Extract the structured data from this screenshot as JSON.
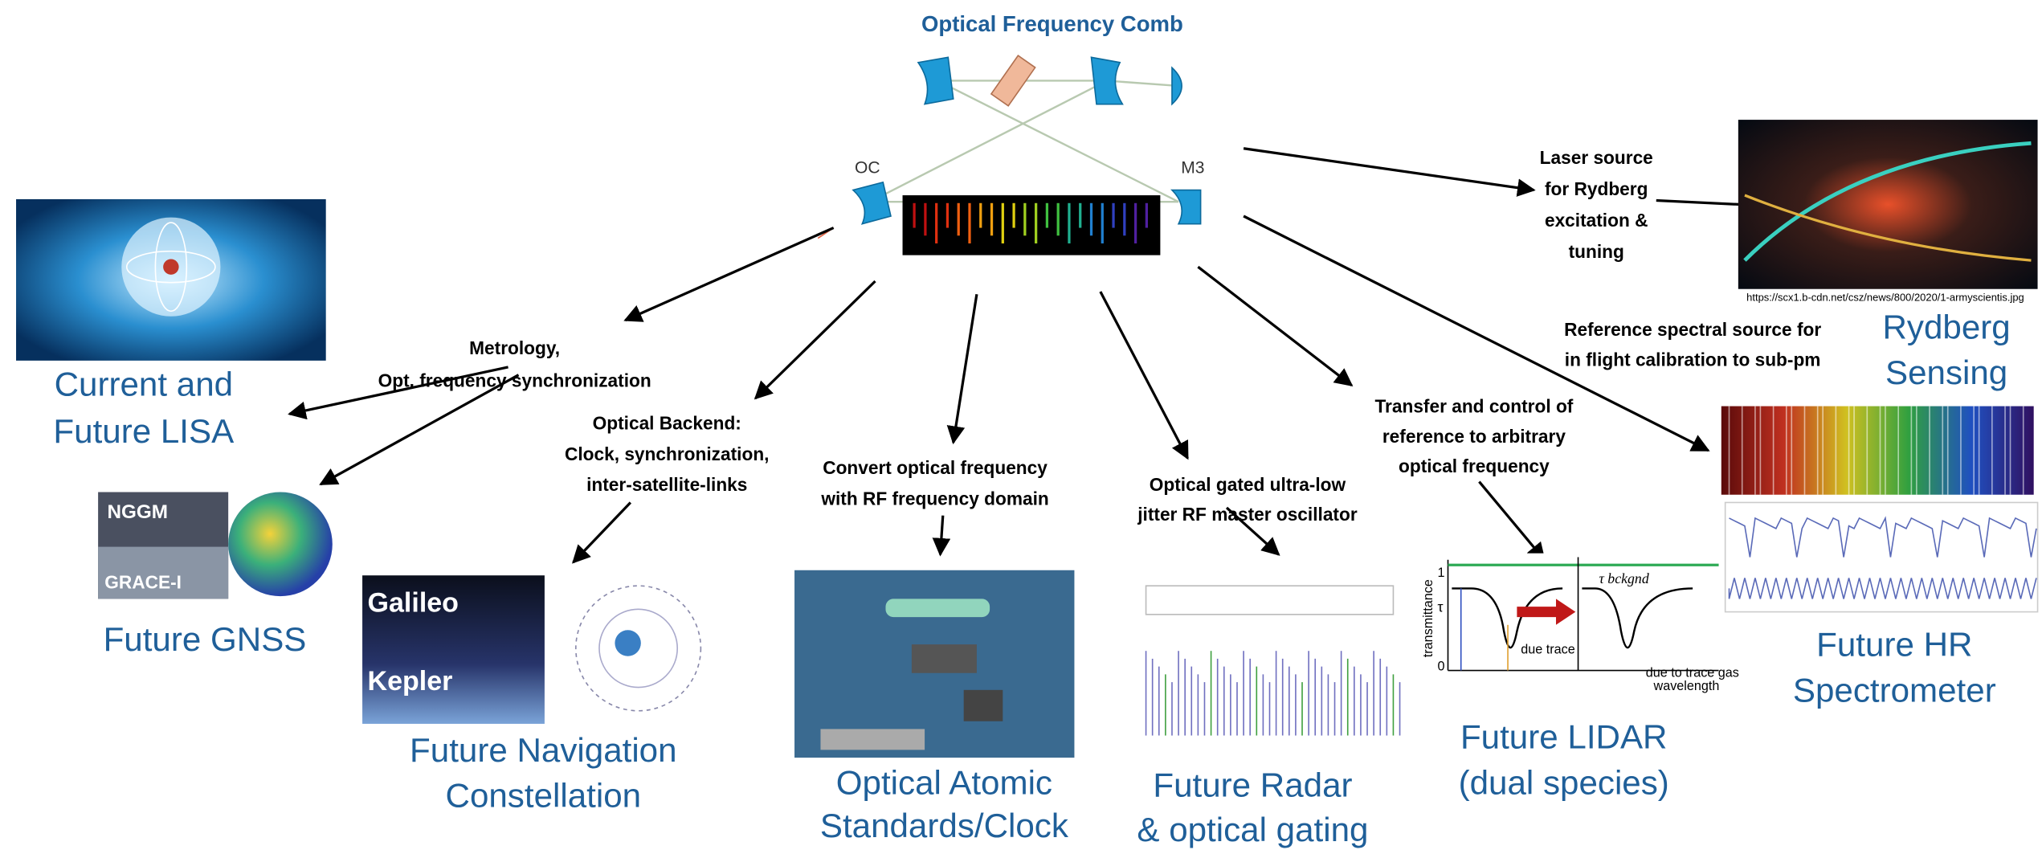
{
  "title": "Optical Frequency Comb",
  "comb_labels": [
    "OC",
    "M3"
  ],
  "links": [
    {
      "lines": [
        "Metrology,",
        "Opt. frequency synchronization"
      ]
    },
    {
      "lines": [
        "Optical Backend:",
        "Clock, synchronization,",
        "inter-satellite-links"
      ]
    },
    {
      "lines": [
        "Convert optical frequency",
        "with RF frequency domain"
      ]
    },
    {
      "lines": [
        "Optical gated ultra-low",
        "jitter RF master oscillator"
      ]
    },
    {
      "lines": [
        "Transfer and control of",
        "reference to arbitrary",
        "optical frequency"
      ]
    },
    {
      "lines": [
        "Reference spectral source for",
        "in flight calibration to sub-pm"
      ]
    },
    {
      "lines": [
        "Laser source",
        "for Rydberg",
        "excitation &",
        "tuning"
      ]
    }
  ],
  "applications": [
    {
      "lines": [
        "Current and",
        "Future LISA"
      ]
    },
    {
      "lines": [
        "Future GNSS"
      ]
    },
    {
      "lines": [
        "Future Navigation",
        "Constellation"
      ]
    },
    {
      "lines": [
        "Optical Atomic",
        "Standards/Clock"
      ]
    },
    {
      "lines": [
        "Future Radar",
        "& optical gating"
      ]
    },
    {
      "lines": [
        "Future LIDAR",
        "(dual species)"
      ]
    },
    {
      "lines": [
        "Future HR",
        "Spectrometer"
      ]
    },
    {
      "lines": [
        "Rydberg",
        "Sensing"
      ]
    }
  ],
  "image_texts": {
    "nggm": "NGGM",
    "grace": "GRACE-I",
    "galileo": "Galileo",
    "kepler": "Kepler",
    "source_url": "https://scx1.b-cdn.net/csz/news/800/2020/1-armyscientis.jpg",
    "lidar_axis": "transmittance",
    "lidar_one": "1",
    "lidar_tau": "τ",
    "lidar_zero": "0",
    "lidar_bckgnd": "τ bckgnd",
    "lidar_due_trace": "due trace",
    "lidar_due_gas": "due to trace gas",
    "lidar_wavelength": "wavelength"
  }
}
